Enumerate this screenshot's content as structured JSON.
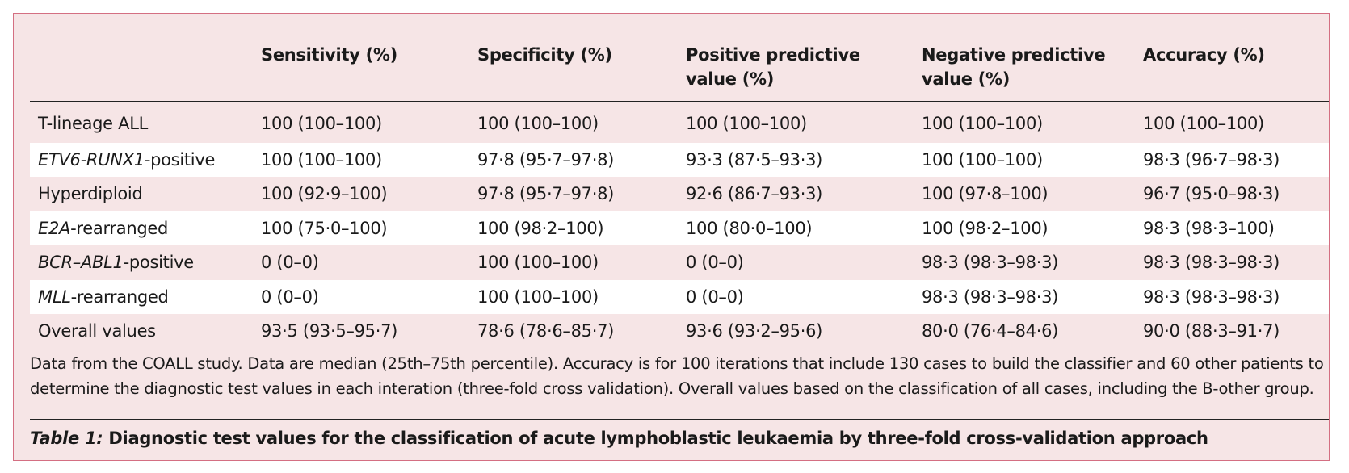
{
  "table": {
    "columns": [
      "",
      "Sensitivity (%)",
      "Specificity (%)",
      "Positive predictive value (%)",
      "Negative predictive value (%)",
      "Accuracy (%)"
    ],
    "rows": [
      {
        "label_italic": "",
        "label_rest": "T-lineage ALL",
        "values": [
          "100 (100–100)",
          "100 (100–100)",
          "100 (100–100)",
          "100 (100–100)",
          "100 (100–100)"
        ]
      },
      {
        "label_italic": "ETV6-RUNX1",
        "label_rest": "-positive",
        "values": [
          "100 (100–100)",
          "97·8 (95·7–97·8)",
          "93·3 (87·5–93·3)",
          "100 (100–100)",
          "98·3 (96·7–98·3)"
        ]
      },
      {
        "label_italic": "",
        "label_rest": "Hyperdiploid",
        "values": [
          "100 (92·9–100)",
          "97·8 (95·7–97·8)",
          "92·6 (86·7–93·3)",
          "100 (97·8–100)",
          "96·7 (95·0–98·3)"
        ]
      },
      {
        "label_italic": "E2A",
        "label_rest": "-rearranged",
        "values": [
          "100 (75·0–100)",
          "100 (98·2–100)",
          "100 (80·0–100)",
          "100 (98·2–100)",
          "98·3 (98·3–100)"
        ]
      },
      {
        "label_italic": "BCR–ABL1",
        "label_rest": "-positive",
        "values": [
          "0 (0–0)",
          "100 (100–100)",
          "0 (0–0)",
          "98·3 (98·3–98·3)",
          "98·3 (98·3–98·3)"
        ]
      },
      {
        "label_italic": "MLL",
        "label_rest": "-rearranged",
        "values": [
          "0 (0–0)",
          "100 (100–100)",
          "0 (0–0)",
          "98·3 (98·3–98·3)",
          "98·3 (98·3–98·3)"
        ]
      },
      {
        "label_italic": "",
        "label_rest": "Overall values",
        "values": [
          "93·5 (93·5–95·7)",
          "78·6 (78·6–85·7)",
          "93·6 (93·2–95·6)",
          "80·0 (76·4–84·6)",
          "90·0 (88·3–91·7)"
        ]
      }
    ]
  },
  "footnote": "Data from the COALL study. Data are median (25th–75th percentile). Accuracy is for 100 iterations that include 130 cases to build the classifier and 60 other patients to determine the diagnostic test values in each interation (three-fold cross validation). Overall values based on the classification of all cases, including the B-other group.",
  "caption": {
    "label": "Table 1:",
    "text": " Diagnostic test values for the classification of acute lymphoblastic leukaemia by three-fold cross-validation approach"
  },
  "colors": {
    "panel_bg": "#f6e5e6",
    "panel_border": "#d46f82",
    "stripe": "#ffffff"
  }
}
